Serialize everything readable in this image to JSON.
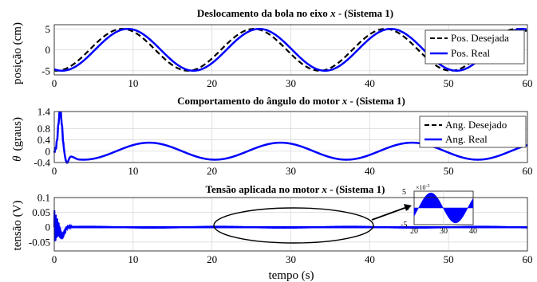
{
  "chart_data": [
    {
      "type": "line",
      "title": "Deslocamento da bola no eixo",
      "title_var": "x",
      "title_suffix": "- (Sistema 1)",
      "ylabel": "posição (cm)",
      "xlabel": "",
      "xlim": [
        0,
        60
      ],
      "ylim": [
        -6,
        6
      ],
      "xticks": [
        0,
        10,
        20,
        30,
        40,
        50,
        60
      ],
      "xticklabels": [
        "0",
        "10",
        "20",
        "30",
        "40",
        "50",
        "60"
      ],
      "yticks": [
        -5,
        0,
        5
      ],
      "yticklabels": [
        "-5",
        "0",
        "5"
      ],
      "grid": true,
      "legend_placement": "right",
      "series": [
        {
          "name": "Pos. Desejada",
          "style": "dashed",
          "color": "#000000",
          "amplitude": 5,
          "period_s": 16.67,
          "phase_s": 0.3
        },
        {
          "name": "Pos. Real",
          "style": "solid",
          "color": "#0000ff",
          "amplitude": 5,
          "period_s": 16.67,
          "phase_s": 1.0
        }
      ]
    },
    {
      "type": "line",
      "title": "Comportamento do ângulo do motor",
      "title_var": "x",
      "title_suffix": "- (Sistema 1)",
      "ylabel": "(graus)",
      "ylabel_symbol": "θ",
      "xlabel": "",
      "xlim": [
        0,
        60
      ],
      "ylim": [
        -0.4,
        1.4
      ],
      "xticks": [
        0,
        10,
        20,
        30,
        40,
        50,
        60
      ],
      "xticklabels": [
        "0",
        "10",
        "20",
        "30",
        "40",
        "50",
        "60"
      ],
      "yticks": [
        -0.4,
        0,
        0.4,
        0.8,
        1.4
      ],
      "yticklabels": [
        "-0.4",
        "0",
        "0.4",
        "0.8",
        "1.4"
      ],
      "grid": true,
      "legend_placement": "right",
      "series": [
        {
          "name": "Ang. Desejado",
          "style": "dashed",
          "color": "#000000"
        },
        {
          "name": "Ang. Real",
          "style": "solid",
          "color": "#0000ff",
          "peak": 1.22,
          "oscillation_amplitude": 0.3,
          "period_s": 16.67
        }
      ]
    },
    {
      "type": "line",
      "title": "Tensão aplicada no motor",
      "title_var": "x",
      "title_suffix": "- (Sistema 1)",
      "ylabel": "tensão (V)",
      "xlabel": "tempo (s)",
      "xlim": [
        0,
        60
      ],
      "ylim": [
        -0.08,
        0.1
      ],
      "xticks": [
        0,
        10,
        20,
        30,
        40,
        50,
        60
      ],
      "xticklabels": [
        "0",
        "10",
        "20",
        "30",
        "40",
        "50",
        "60"
      ],
      "yticks": [
        -0.05,
        0,
        0.05,
        0.1
      ],
      "yticklabels": [
        "-0.05",
        "0",
        "0.05",
        "0.1"
      ],
      "grid": true,
      "series": [
        {
          "name": "",
          "style": "solid",
          "color": "#0000ff"
        }
      ],
      "inset": {
        "xlim": [
          20,
          40
        ],
        "ylim": [
          -5,
          5
        ],
        "xticklabels": [
          "20",
          "30",
          "40"
        ],
        "yticklabels": [
          "5",
          "0",
          "-5"
        ],
        "scale_base": "×10",
        "scale_exp": "-3",
        "amplitude": 4.5
      }
    }
  ]
}
